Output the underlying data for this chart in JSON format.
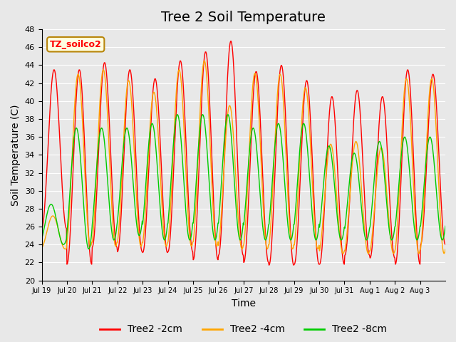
{
  "title": "Tree 2 Soil Temperature",
  "xlabel": "Time",
  "ylabel": "Soil Temperature (C)",
  "ylim": [
    20,
    48
  ],
  "yticks": [
    20,
    22,
    24,
    26,
    28,
    30,
    32,
    34,
    36,
    38,
    40,
    42,
    44,
    46,
    48
  ],
  "xtick_labels": [
    "Jul 19",
    "Jul 20",
    "Jul 21",
    "Jul 22",
    "Jul 23",
    "Jul 24",
    "Jul 25",
    "Jul 26",
    "Jul 27",
    "Jul 28",
    "Jul 29",
    "Jul 30",
    "Jul 31",
    "Aug 1",
    "Aug 2",
    "Aug 3"
  ],
  "annotation_text": "TZ_soilco2",
  "line_colors": [
    "#ff0000",
    "#ffa500",
    "#00cc00"
  ],
  "line_labels": [
    "Tree2 -2cm",
    "Tree2 -4cm",
    "Tree2 -8cm"
  ],
  "background_color": "#e8e8e8",
  "plot_bg_color": "#e8e8e8",
  "title_fontsize": 14,
  "axis_fontsize": 10,
  "legend_fontsize": 10,
  "n_cycles": 16,
  "peaks_2cm": [
    43.5,
    43.5,
    44.3,
    43.5,
    42.5,
    44.5,
    45.5,
    46.7,
    43.3,
    44.0,
    42.3,
    40.5,
    41.2,
    40.5,
    43.5,
    43.0
  ],
  "troughs_2cm": [
    25.8,
    21.8,
    23.7,
    23.2,
    23.1,
    23.2,
    22.3,
    22.8,
    22.0,
    21.7,
    21.8,
    21.8,
    22.8,
    22.5,
    21.8,
    24.0
  ],
  "peaks_4cm": [
    27.2,
    43.0,
    43.5,
    42.3,
    41.0,
    43.5,
    44.5,
    39.5,
    43.1,
    43.0,
    41.5,
    35.2,
    35.5,
    34.8,
    42.5,
    42.5
  ],
  "troughs_4cm": [
    23.5,
    23.8,
    23.8,
    23.8,
    23.8,
    23.8,
    23.8,
    23.5,
    23.5,
    23.5,
    23.5,
    23.0,
    23.0,
    23.0,
    23.0,
    23.0
  ],
  "peaks_8cm": [
    28.5,
    37.0,
    37.0,
    37.0,
    37.5,
    38.5,
    38.5,
    38.5,
    37.0,
    37.5,
    37.5,
    35.0,
    34.2,
    35.5,
    36.0,
    36.0
  ],
  "troughs_8cm": [
    24.0,
    23.5,
    24.5,
    25.0,
    24.5,
    24.5,
    24.5,
    24.5,
    24.5,
    24.5,
    24.5,
    24.5,
    24.5,
    24.5,
    24.5,
    24.5
  ]
}
